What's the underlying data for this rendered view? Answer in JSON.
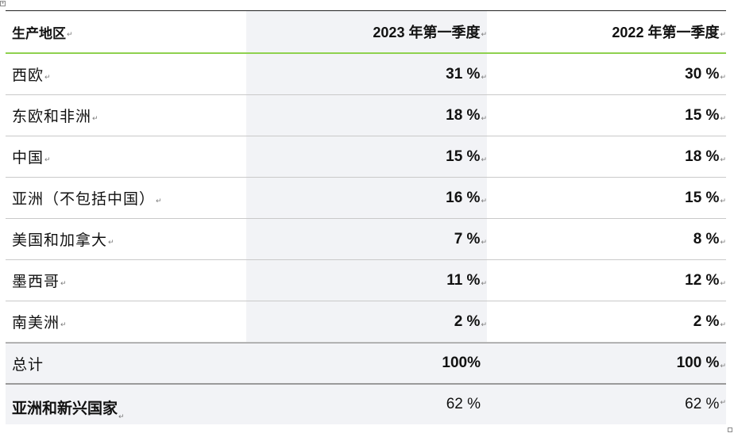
{
  "marks": {
    "paragraph": "↵"
  },
  "table": {
    "header": {
      "region": "生产地区",
      "col_2023": "2023 年第一季度",
      "col_2022": "2022 年第一季度"
    },
    "rows": [
      {
        "region": "西欧",
        "q1_2023": "31 %",
        "q1_2022": "30 %"
      },
      {
        "region": "东欧和非洲",
        "q1_2023": "18 %",
        "q1_2022": "15 %"
      },
      {
        "region": "中国",
        "q1_2023": "15 %",
        "q1_2022": "18 %"
      },
      {
        "region": "亚洲（不包括中国）",
        "q1_2023": "16 %",
        "q1_2022": "15 %"
      },
      {
        "region": "美国和加拿大",
        "q1_2023": "7 %",
        "q1_2022": "8 %"
      },
      {
        "region": "墨西哥",
        "q1_2023": "11 %",
        "q1_2022": "12 %"
      },
      {
        "region": "南美洲",
        "q1_2023": "2 %",
        "q1_2022": "2 %"
      }
    ],
    "total": {
      "label": "总计",
      "q1_2023": "100%",
      "q1_2022": "100 %"
    },
    "asia_emerging": {
      "label": "亚洲和新兴国家",
      "q1_2023": "62 %",
      "q1_2022": "62 %"
    }
  }
}
